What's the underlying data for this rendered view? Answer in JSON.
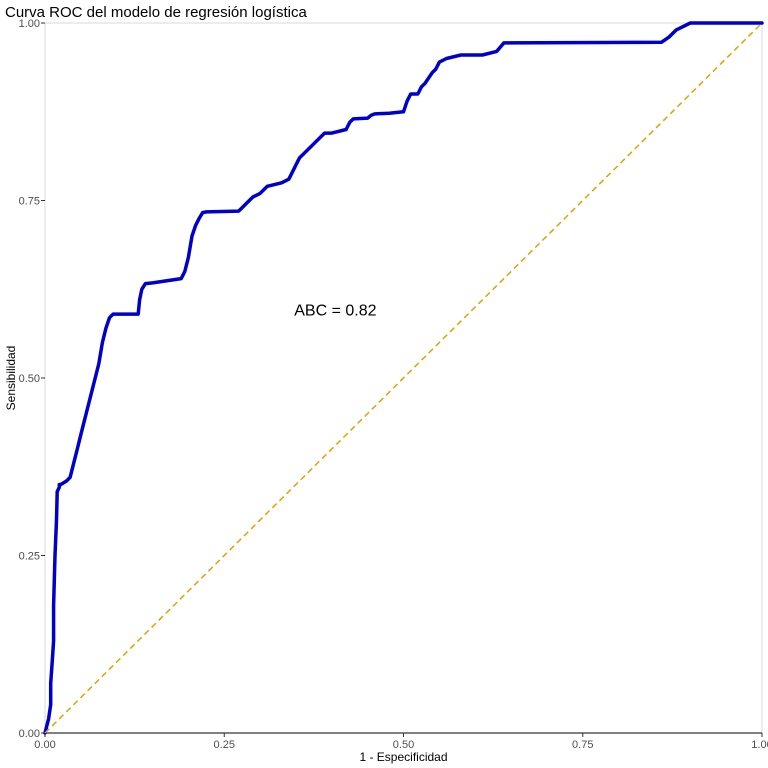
{
  "chart_data": {
    "type": "line",
    "title": "Curva ROC del modelo de regresión logística",
    "xlabel": "1 - Especificidad",
    "ylabel": "Sensibilidad",
    "xlim": [
      0,
      1
    ],
    "ylim": [
      0,
      1
    ],
    "x_ticks": [
      "0.00",
      "0.25",
      "0.50",
      "0.75",
      "1.00"
    ],
    "y_ticks": [
      "0.00",
      "0.25",
      "0.50",
      "0.75",
      "1.00"
    ],
    "grid": false,
    "annotation": "ABC = 0.82",
    "colors": {
      "roc_curve": "#0000cc",
      "reference_line": "#e69f00",
      "axis": "#000000"
    },
    "series": [
      {
        "style": "solid",
        "x": [
          0.0,
          0.005,
          0.008,
          0.008,
          0.01,
          0.012,
          0.012,
          0.014,
          0.016,
          0.017,
          0.02,
          0.02,
          0.022,
          0.03,
          0.035,
          0.04,
          0.045,
          0.05,
          0.055,
          0.06,
          0.065,
          0.07,
          0.075,
          0.08,
          0.085,
          0.09,
          0.095,
          0.1,
          0.115,
          0.13,
          0.132,
          0.135,
          0.14,
          0.15,
          0.19,
          0.195,
          0.2,
          0.205,
          0.21,
          0.215,
          0.22,
          0.225,
          0.27,
          0.275,
          0.28,
          0.285,
          0.29,
          0.3,
          0.31,
          0.33,
          0.34,
          0.345,
          0.35,
          0.355,
          0.36,
          0.365,
          0.37,
          0.375,
          0.385,
          0.39,
          0.4,
          0.42,
          0.425,
          0.43,
          0.45,
          0.455,
          0.46,
          0.48,
          0.5,
          0.505,
          0.51,
          0.52,
          0.525,
          0.53,
          0.54,
          0.545,
          0.55,
          0.56,
          0.58,
          0.61,
          0.63,
          0.64,
          0.86,
          0.87,
          0.88,
          0.9,
          1.0
        ],
        "y": [
          0.0,
          0.02,
          0.04,
          0.07,
          0.1,
          0.13,
          0.18,
          0.25,
          0.3,
          0.34,
          0.346,
          0.35,
          0.35,
          0.355,
          0.36,
          0.38,
          0.4,
          0.42,
          0.44,
          0.46,
          0.48,
          0.5,
          0.52,
          0.55,
          0.57,
          0.585,
          0.59,
          0.59,
          0.59,
          0.59,
          0.61,
          0.625,
          0.633,
          0.634,
          0.64,
          0.65,
          0.67,
          0.7,
          0.715,
          0.725,
          0.733,
          0.734,
          0.735,
          0.74,
          0.745,
          0.75,
          0.755,
          0.76,
          0.77,
          0.775,
          0.78,
          0.79,
          0.8,
          0.81,
          0.815,
          0.82,
          0.825,
          0.83,
          0.84,
          0.845,
          0.845,
          0.85,
          0.86,
          0.865,
          0.866,
          0.87,
          0.872,
          0.873,
          0.875,
          0.89,
          0.9,
          0.9,
          0.91,
          0.915,
          0.93,
          0.935,
          0.945,
          0.95,
          0.955,
          0.955,
          0.96,
          0.972,
          0.973,
          0.98,
          0.99,
          1.0,
          1.0
        ]
      },
      {
        "style": "dashed",
        "x": [
          0,
          1
        ],
        "y": [
          0,
          1
        ]
      }
    ]
  }
}
